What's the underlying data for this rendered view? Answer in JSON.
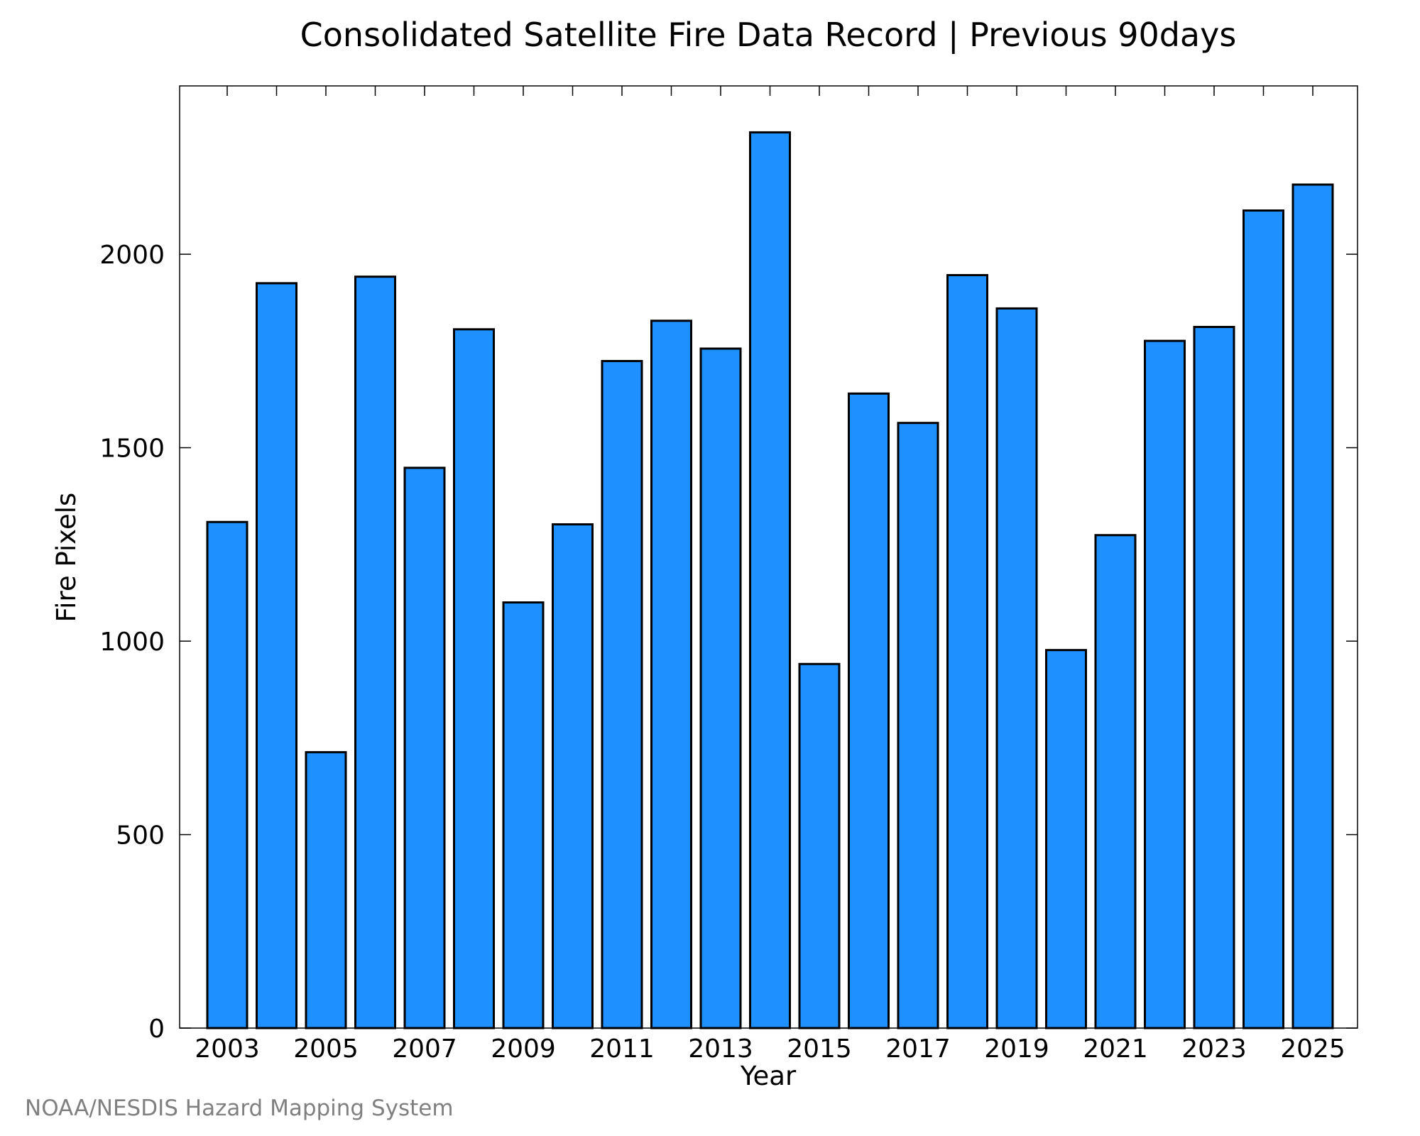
{
  "chart_data": {
    "type": "bar",
    "title": "Consolidated Satellite Fire Data Record | Previous 90days",
    "xlabel": "Year",
    "ylabel": "Fire Pixels",
    "categories": [
      "2003",
      "2004",
      "2005",
      "2006",
      "2007",
      "2008",
      "2009",
      "2010",
      "2011",
      "2012",
      "2013",
      "2014",
      "2015",
      "2016",
      "2017",
      "2018",
      "2019",
      "2020",
      "2021",
      "2022",
      "2023",
      "2024",
      "2025"
    ],
    "values": [
      1308,
      1925,
      713,
      1942,
      1448,
      1806,
      1100,
      1302,
      1724,
      1828,
      1756,
      2315,
      941,
      1640,
      1564,
      1946,
      1860,
      977,
      1274,
      1776,
      1812,
      2113,
      2180
    ],
    "x_tick_labels": [
      "2003",
      "2005",
      "2007",
      "2009",
      "2011",
      "2013",
      "2015",
      "2017",
      "2019",
      "2021",
      "2023",
      "2025"
    ],
    "y_ticks": [
      0,
      500,
      1000,
      1500,
      2000
    ],
    "ylim": [
      0,
      2435
    ],
    "grid": false,
    "colors": {
      "bar_fill": "#1E90FF",
      "bar_edge": "#000000",
      "credit": "#808080"
    }
  },
  "credit": "NOAA/NESDIS Hazard Mapping System"
}
